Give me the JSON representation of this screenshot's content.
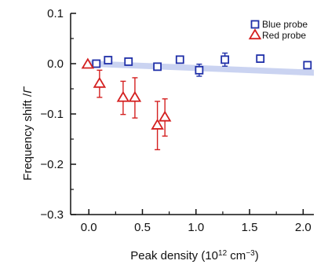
{
  "chart_data": {
    "type": "scatter",
    "title": "",
    "xlabel": {
      "base": "Peak density (10",
      "sup1": "12",
      "mid": " cm",
      "sup2": "−3",
      "end": ")"
    },
    "ylabel": {
      "text": "Frequency shift /",
      "symbol": "Γ"
    },
    "xlim": [
      -0.17,
      2.1
    ],
    "ylim": [
      -0.3,
      0.1
    ],
    "xticks": [
      {
        "value": 0.0,
        "label": "0.0"
      },
      {
        "value": 0.5,
        "label": "0.5"
      },
      {
        "value": 1.0,
        "label": "1.0"
      },
      {
        "value": 1.5,
        "label": "1.5"
      },
      {
        "value": 2.0,
        "label": "2.0"
      }
    ],
    "yticks": [
      {
        "value": 0.1,
        "label": "0.1"
      },
      {
        "value": 0.0,
        "label": "0.0"
      },
      {
        "value": -0.1,
        "label": "−0.1"
      },
      {
        "value": -0.2,
        "label": "−0.2"
      },
      {
        "value": -0.3,
        "label": "−0.3"
      }
    ],
    "legend_position": "top-right",
    "band": {
      "color": "#b8c4ec",
      "x": [
        0.0,
        2.1
      ],
      "y_center": [
        0.0,
        -0.018
      ],
      "half_width": 0.006
    },
    "series": [
      {
        "name": "Blue probe",
        "marker": "square",
        "color": "#1f2fa8",
        "points": [
          {
            "x": 0.07,
            "y": 0.0,
            "err": 0.0
          },
          {
            "x": 0.18,
            "y": 0.007,
            "err": 0.0
          },
          {
            "x": 0.37,
            "y": 0.004,
            "err": 0.0
          },
          {
            "x": 0.64,
            "y": -0.006,
            "err": 0.0
          },
          {
            "x": 0.85,
            "y": 0.008,
            "err": 0.0
          },
          {
            "x": 1.03,
            "y": -0.013,
            "err": 0.012
          },
          {
            "x": 1.27,
            "y": 0.008,
            "err": 0.013
          },
          {
            "x": 1.6,
            "y": 0.01,
            "err": 0.0
          },
          {
            "x": 2.04,
            "y": -0.003,
            "err": 0.0
          }
        ]
      },
      {
        "name": "Red probe",
        "marker": "triangle",
        "color": "#d42020",
        "points": [
          {
            "x": -0.01,
            "y": -0.002,
            "err": 0.0
          },
          {
            "x": 0.1,
            "y": -0.04,
            "err": 0.027
          },
          {
            "x": 0.32,
            "y": -0.068,
            "err": 0.033
          },
          {
            "x": 0.43,
            "y": -0.068,
            "err": 0.04
          },
          {
            "x": 0.64,
            "y": -0.123,
            "err": 0.048
          },
          {
            "x": 0.71,
            "y": -0.107,
            "err": 0.037
          }
        ]
      }
    ]
  }
}
